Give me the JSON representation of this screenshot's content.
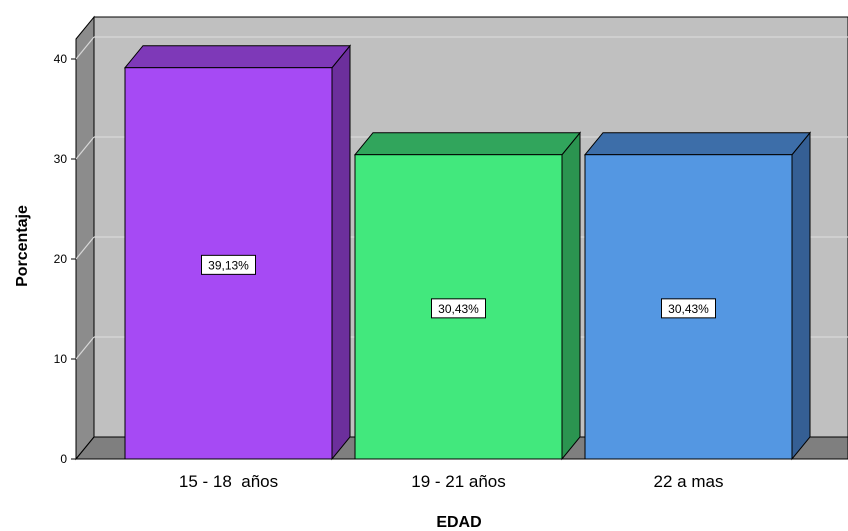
{
  "chart_data": {
    "type": "bar",
    "categories": [
      "15 - 18  años",
      "19 - 21 años",
      "22 a mas"
    ],
    "values": [
      39.13,
      30.43,
      30.43
    ],
    "data_labels": [
      "39,13%",
      "30,43%",
      "30,43%"
    ],
    "bar_colors": [
      "#a64af4",
      "#42e87d",
      "#5497e2"
    ],
    "bar_side_colors": [
      "#6c2f9c",
      "#2b9450",
      "#355f94"
    ],
    "bar_top_colors": [
      "#7e39b8",
      "#31a55c",
      "#3d6ea9"
    ],
    "xlabel": "EDAD",
    "ylabel": "Porcentaje",
    "ylim": [
      0,
      40
    ],
    "yticks": [
      0,
      10,
      20,
      30,
      40
    ],
    "grid": true,
    "style": "3d"
  },
  "colors": {
    "wall": "#c0c0c0",
    "left_wall": "#8c8c8c",
    "floor": "#7f7f7f",
    "gridline": "#d8d8d8"
  }
}
